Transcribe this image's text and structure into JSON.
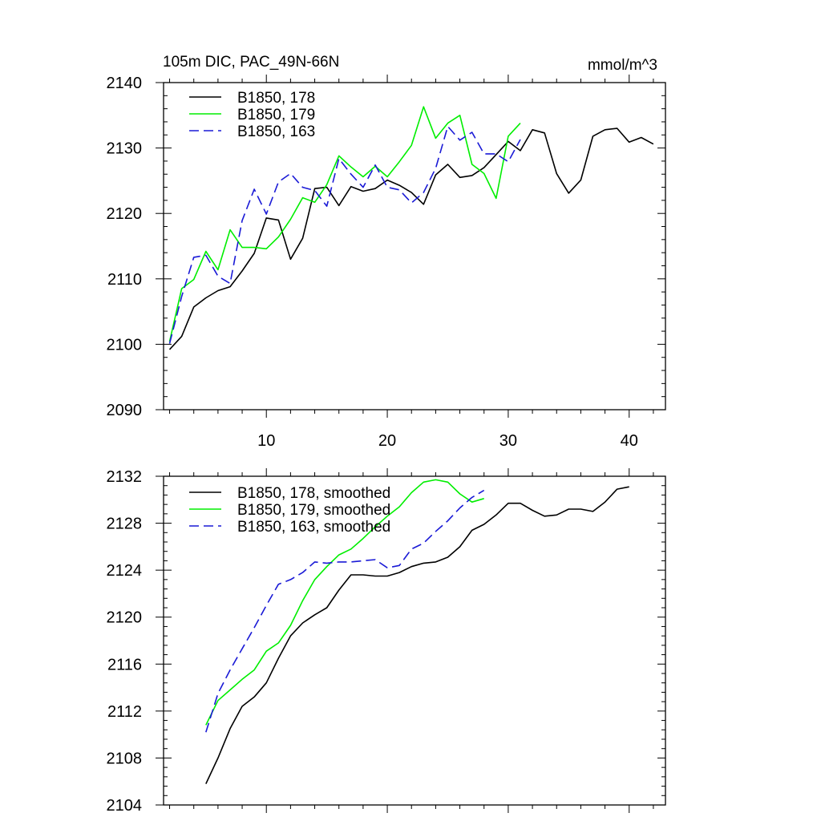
{
  "chart_data": [
    {
      "type": "line",
      "title": "105m DIC, PAC_49N-66N",
      "units": "mmol/m^3",
      "xlim": [
        1.5,
        43
      ],
      "ylim": [
        2090,
        2140
      ],
      "xticks": [
        10,
        20,
        30,
        40
      ],
      "yticks": [
        2090,
        2100,
        2110,
        2120,
        2130,
        2140
      ],
      "grid": false,
      "legend": "top-left",
      "series": [
        {
          "name": "B1850, 178",
          "color": "#000000",
          "dash": "solid",
          "x": [
            2,
            3,
            4,
            5,
            6,
            7,
            8,
            9,
            10,
            11,
            12,
            13,
            14,
            15,
            16,
            17,
            18,
            19,
            20,
            21,
            22,
            23,
            24,
            25,
            26,
            27,
            28,
            29,
            30,
            31,
            32,
            33,
            34,
            35,
            36,
            37,
            38,
            39,
            40,
            41,
            42
          ],
          "y": [
            2099.2,
            2101.2,
            2105.7,
            2107.1,
            2108.2,
            2108.8,
            2111.2,
            2113.9,
            2119.3,
            2119,
            2113,
            2116.2,
            2123.8,
            2124,
            2121.2,
            2124.1,
            2123.4,
            2123.8,
            2125.1,
            2124.3,
            2123.2,
            2121.4,
            2125.9,
            2127.5,
            2125.5,
            2125.8,
            2127,
            2129,
            2131,
            2129.6,
            2132.8,
            2132.3,
            2126.1,
            2123.1,
            2125.1,
            2131.8,
            2132.8,
            2133,
            2130.9,
            2131.6,
            2130.6
          ]
        },
        {
          "name": "B1850, 179",
          "color": "#00ee00",
          "dash": "solid",
          "x": [
            2,
            3,
            4,
            5,
            6,
            7,
            8,
            9,
            10,
            11,
            12,
            13,
            14,
            15,
            16,
            17,
            18,
            19,
            20,
            21,
            22,
            23,
            24,
            25,
            26,
            27,
            28,
            29,
            30,
            31
          ],
          "y": [
            2100.4,
            2108.5,
            2109.9,
            2114.2,
            2111.4,
            2117.5,
            2114.8,
            2114.8,
            2114.6,
            2116.4,
            2119.1,
            2122.4,
            2121.7,
            2124.4,
            2128.8,
            2127.1,
            2125.6,
            2127.2,
            2125.6,
            2127.9,
            2130.4,
            2136.3,
            2131.5,
            2133.8,
            2135,
            2127.5,
            2126.1,
            2122.3,
            2131.8,
            2133.8
          ]
        },
        {
          "name": "B1850, 163",
          "color": "#1a1ad6",
          "dash": "dashed",
          "x": [
            2,
            3,
            4,
            5,
            6,
            7,
            8,
            9,
            10,
            11,
            12,
            13,
            14,
            15,
            16,
            17,
            18,
            19,
            20,
            21,
            22,
            23,
            24,
            25,
            26,
            27,
            28,
            29,
            30,
            31
          ],
          "y": [
            2100.1,
            2107.3,
            2113.3,
            2113.6,
            2110.4,
            2109.3,
            2118.9,
            2123.7,
            2119.9,
            2124.8,
            2126.1,
            2124,
            2123.5,
            2121.1,
            2128.4,
            2126,
            2124,
            2127.4,
            2124,
            2123.6,
            2121.6,
            2123.2,
            2126.9,
            2133.3,
            2131.2,
            2132.4,
            2129.1,
            2129.1,
            2127.9,
            2131.3
          ]
        }
      ]
    },
    {
      "type": "line",
      "xlim": [
        1.5,
        43
      ],
      "ylim": [
        2104,
        2132
      ],
      "xticks": [
        10,
        20,
        30,
        40
      ],
      "yticks": [
        2104,
        2108,
        2112,
        2116,
        2120,
        2124,
        2128,
        2132
      ],
      "grid": false,
      "legend": "top-left",
      "series": [
        {
          "name": "B1850, 178, smoothed",
          "color": "#000000",
          "dash": "solid",
          "x": [
            5,
            6,
            7,
            8,
            9,
            10,
            11,
            12,
            13,
            14,
            15,
            16,
            17,
            18,
            19,
            20,
            21,
            22,
            23,
            24,
            25,
            26,
            27,
            28,
            29,
            30,
            31,
            32,
            33,
            34,
            35,
            36,
            37,
            38,
            39,
            40
          ],
          "y": [
            2105.8,
            2108,
            2110.5,
            2112.4,
            2113.2,
            2114.4,
            2116.5,
            2118.4,
            2119.5,
            2120.2,
            2120.8,
            2122.3,
            2123.6,
            2123.6,
            2123.5,
            2123.5,
            2123.8,
            2124.3,
            2124.6,
            2124.7,
            2125.1,
            2126,
            2127.4,
            2127.9,
            2128.7,
            2129.7,
            2129.7,
            2129.1,
            2128.6,
            2128.7,
            2129.2,
            2129.2,
            2129,
            2129.8,
            2130.9,
            2131.1
          ]
        },
        {
          "name": "B1850, 179, smoothed",
          "color": "#00ee00",
          "dash": "solid",
          "x": [
            5,
            6,
            7,
            8,
            9,
            10,
            11,
            12,
            13,
            14,
            15,
            16,
            17,
            18,
            19,
            20,
            21,
            22,
            23,
            24,
            25,
            26,
            27,
            28
          ],
          "y": [
            2110.8,
            2112.9,
            2113.8,
            2114.7,
            2115.5,
            2117.1,
            2117.8,
            2119.3,
            2121.4,
            2123.2,
            2124.3,
            2125.3,
            2125.8,
            2126.7,
            2127.7,
            2128.6,
            2129.4,
            2130.6,
            2131.5,
            2131.7,
            2131.5,
            2130.5,
            2129.8,
            2130.1
          ]
        },
        {
          "name": "B1850, 163, smoothed",
          "color": "#1a1ad6",
          "dash": "dashed",
          "x": [
            5,
            6,
            7,
            8,
            9,
            10,
            11,
            12,
            13,
            14,
            15,
            16,
            17,
            18,
            19,
            20,
            21,
            22,
            23,
            24,
            25,
            26,
            27,
            28
          ],
          "y": [
            2110.2,
            2113.5,
            2115.5,
            2117.3,
            2119.1,
            2121,
            2122.8,
            2123.2,
            2123.8,
            2124.7,
            2124.6,
            2124.7,
            2124.7,
            2124.8,
            2124.9,
            2124.2,
            2124.4,
            2125.8,
            2126.3,
            2127.3,
            2128.2,
            2129.3,
            2130.2,
            2130.8
          ]
        }
      ]
    }
  ]
}
